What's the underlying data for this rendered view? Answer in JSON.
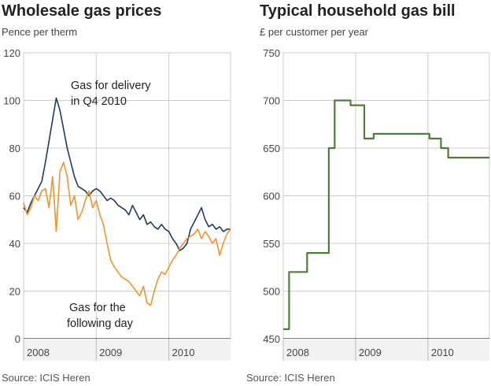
{
  "chart_data": [
    {
      "type": "line",
      "title": "Wholesale gas prices",
      "subtitle": "Pence per therm",
      "source": "Source: ICIS Heren",
      "ylim": [
        0,
        120
      ],
      "yticks": [
        0,
        20,
        40,
        60,
        80,
        100,
        120
      ],
      "xlim": [
        2008.0,
        2010.85
      ],
      "xticks": [
        2008,
        2009,
        2010
      ],
      "grid": true,
      "colors": {
        "delivery": "#1f3b5c",
        "following": "#f0922b",
        "axis": "#555555",
        "grid": "#cccccc"
      },
      "annotations": [
        {
          "text": "Gas for delivery",
          "series": "delivery"
        },
        {
          "text": "in Q4 2010",
          "series": "delivery"
        },
        {
          "text": "Gas for the",
          "series": "following"
        },
        {
          "text": "following day",
          "series": "following"
        }
      ],
      "series": [
        {
          "id": "delivery",
          "x": [
            2008.0,
            2008.05,
            2008.1,
            2008.15,
            2008.2,
            2008.25,
            2008.3,
            2008.35,
            2008.4,
            2008.45,
            2008.5,
            2008.55,
            2008.6,
            2008.65,
            2008.7,
            2008.75,
            2008.8,
            2008.85,
            2008.9,
            2008.95,
            2009.0,
            2009.05,
            2009.1,
            2009.15,
            2009.2,
            2009.25,
            2009.3,
            2009.35,
            2009.4,
            2009.45,
            2009.5,
            2009.55,
            2009.6,
            2009.65,
            2009.7,
            2009.75,
            2009.8,
            2009.85,
            2009.9,
            2009.95,
            2010.0,
            2010.05,
            2010.1,
            2010.15,
            2010.2,
            2010.25,
            2010.3,
            2010.35,
            2010.4,
            2010.45,
            2010.5,
            2010.55,
            2010.6,
            2010.65,
            2010.7,
            2010.75,
            2010.8,
            2010.85
          ],
          "values": [
            55,
            53,
            57,
            60,
            63,
            66,
            74,
            83,
            92,
            101,
            96,
            88,
            80,
            74,
            68,
            64,
            63,
            62,
            60,
            62,
            63,
            62,
            60,
            58,
            59,
            58,
            56,
            55,
            54,
            52,
            56,
            53,
            50,
            52,
            48,
            49,
            47,
            46,
            48,
            46,
            45,
            42,
            40,
            37,
            38,
            40,
            46,
            49,
            52,
            55,
            50,
            47,
            48,
            46,
            47,
            45,
            46,
            46
          ]
        },
        {
          "id": "following",
          "x": [
            2008.0,
            2008.05,
            2008.1,
            2008.15,
            2008.2,
            2008.25,
            2008.3,
            2008.35,
            2008.4,
            2008.45,
            2008.5,
            2008.55,
            2008.6,
            2008.65,
            2008.7,
            2008.75,
            2008.8,
            2008.85,
            2008.9,
            2008.95,
            2009.0,
            2009.05,
            2009.1,
            2009.15,
            2009.2,
            2009.25,
            2009.3,
            2009.35,
            2009.4,
            2009.45,
            2009.5,
            2009.55,
            2009.6,
            2009.65,
            2009.7,
            2009.75,
            2009.8,
            2009.85,
            2009.9,
            2009.95,
            2010.0,
            2010.05,
            2010.1,
            2010.15,
            2010.2,
            2010.25,
            2010.3,
            2010.35,
            2010.4,
            2010.45,
            2010.5,
            2010.55,
            2010.6,
            2010.65,
            2010.7,
            2010.75,
            2010.8,
            2010.85
          ],
          "values": [
            57,
            52,
            55,
            60,
            58,
            62,
            63,
            55,
            68,
            45,
            70,
            74,
            68,
            56,
            60,
            50,
            53,
            58,
            62,
            55,
            58,
            52,
            48,
            40,
            33,
            30,
            28,
            26,
            25,
            24,
            22,
            20,
            18,
            22,
            15,
            14,
            20,
            25,
            28,
            27,
            30,
            33,
            35,
            38,
            40,
            42,
            43,
            44,
            46,
            42,
            45,
            43,
            40,
            42,
            35,
            40,
            44,
            46
          ]
        }
      ]
    },
    {
      "type": "line",
      "title": "Typical household gas bill",
      "subtitle": "£ per customer per year",
      "source": "Source: ICIS Heren",
      "ylim": [
        450,
        750
      ],
      "yticks": [
        450,
        500,
        550,
        600,
        650,
        700,
        750
      ],
      "xlim": [
        2008.0,
        2010.85
      ],
      "xticks": [
        2008,
        2009,
        2010
      ],
      "grid": true,
      "colors": {
        "bill": "#4e7c3a",
        "axis": "#555555",
        "grid": "#cccccc"
      },
      "series": [
        {
          "id": "bill",
          "step": true,
          "x": [
            2008.0,
            2008.08,
            2008.08,
            2008.33,
            2008.33,
            2008.63,
            2008.63,
            2008.71,
            2008.71,
            2008.93,
            2008.93,
            2009.12,
            2009.12,
            2009.25,
            2009.25,
            2010.02,
            2010.02,
            2010.18,
            2010.18,
            2010.85
          ],
          "values": [
            460,
            460,
            520,
            520,
            540,
            540,
            650,
            650,
            700,
            700,
            695,
            695,
            660,
            660,
            665,
            665,
            660,
            660,
            650,
            650
          ]
        }
      ],
      "steps_note": "",
      "extra_tail": {
        "x": [
          2010.18,
          2010.28,
          2010.28,
          2010.85
        ],
        "values": [
          650,
          650,
          640,
          640
        ]
      }
    }
  ]
}
